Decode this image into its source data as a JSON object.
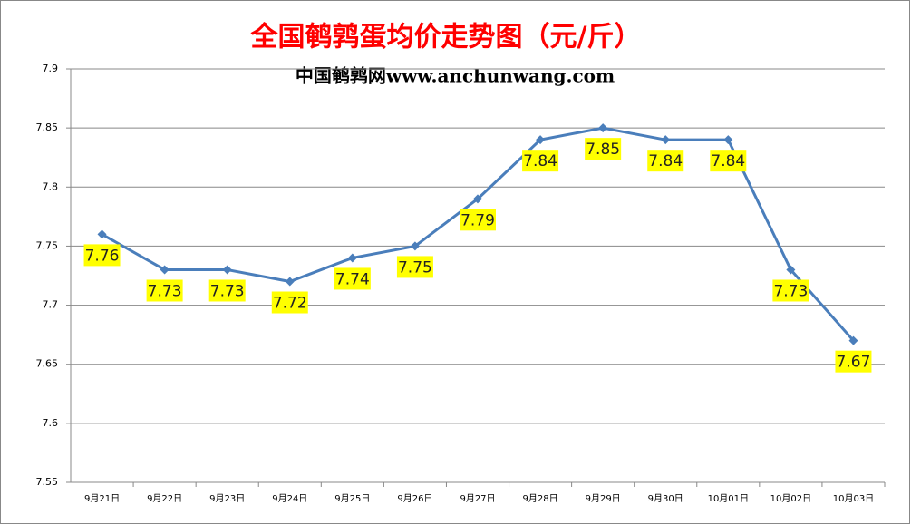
{
  "chart_data": {
    "type": "line",
    "title": "全国鹌鹑蛋均价走势图（元/斤）",
    "subtitle": "中国鹌鹑网www.anchunwang.com",
    "categories": [
      "9月21日",
      "9月22日",
      "9月23日",
      "9月24日",
      "9月25日",
      "9月26日",
      "9月27日",
      "9月28日",
      "9月29日",
      "9月30日",
      "10月01日",
      "10月02日",
      "10月03日"
    ],
    "values": [
      7.76,
      7.73,
      7.73,
      7.72,
      7.74,
      7.75,
      7.79,
      7.84,
      7.85,
      7.84,
      7.84,
      7.73,
      7.67
    ],
    "color": "#4a7ebb",
    "ylim": [
      7.55,
      7.9
    ],
    "yticks": [
      7.55,
      7.6,
      7.65,
      7.7,
      7.75,
      7.8,
      7.85,
      7.9
    ],
    "grid": true
  }
}
